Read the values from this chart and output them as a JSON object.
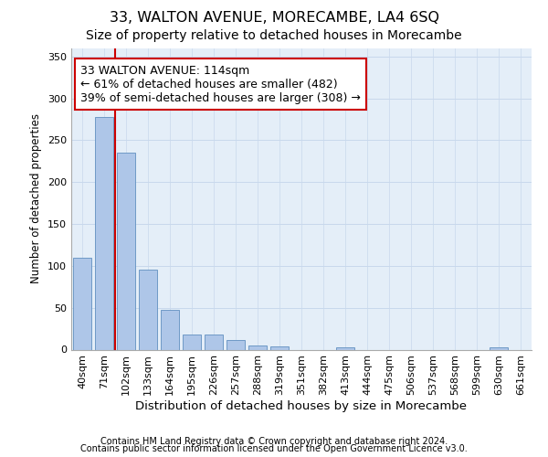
{
  "title": "33, WALTON AVENUE, MORECAMBE, LA4 6SQ",
  "subtitle": "Size of property relative to detached houses in Morecambe",
  "xlabel": "Distribution of detached houses by size in Morecambe",
  "ylabel": "Number of detached properties",
  "categories": [
    "40sqm",
    "71sqm",
    "102sqm",
    "133sqm",
    "164sqm",
    "195sqm",
    "226sqm",
    "257sqm",
    "288sqm",
    "319sqm",
    "351sqm",
    "382sqm",
    "413sqm",
    "444sqm",
    "475sqm",
    "506sqm",
    "537sqm",
    "568sqm",
    "599sqm",
    "630sqm",
    "661sqm"
  ],
  "values": [
    110,
    278,
    235,
    95,
    47,
    18,
    18,
    11,
    5,
    4,
    0,
    0,
    3,
    0,
    0,
    0,
    0,
    0,
    0,
    3,
    0
  ],
  "bar_color": "#aec6e8",
  "bar_edge_color": "#6090c0",
  "vline_x": 1.5,
  "vline_color": "#cc0000",
  "annotation_text": "33 WALTON AVENUE: 114sqm\n← 61% of detached houses are smaller (482)\n39% of semi-detached houses are larger (308) →",
  "annotation_box_color": "#ffffff",
  "annotation_box_edge": "#cc0000",
  "grid_color": "#c8d8ec",
  "background_color": "#e4eef8",
  "ylim": [
    0,
    360
  ],
  "yticks": [
    0,
    50,
    100,
    150,
    200,
    250,
    300,
    350
  ],
  "footer_line1": "Contains HM Land Registry data © Crown copyright and database right 2024.",
  "footer_line2": "Contains public sector information licensed under the Open Government Licence v3.0.",
  "title_fontsize": 11.5,
  "subtitle_fontsize": 10,
  "xlabel_fontsize": 9.5,
  "ylabel_fontsize": 8.5,
  "tick_fontsize": 8,
  "annotation_fontsize": 9,
  "footer_fontsize": 7
}
